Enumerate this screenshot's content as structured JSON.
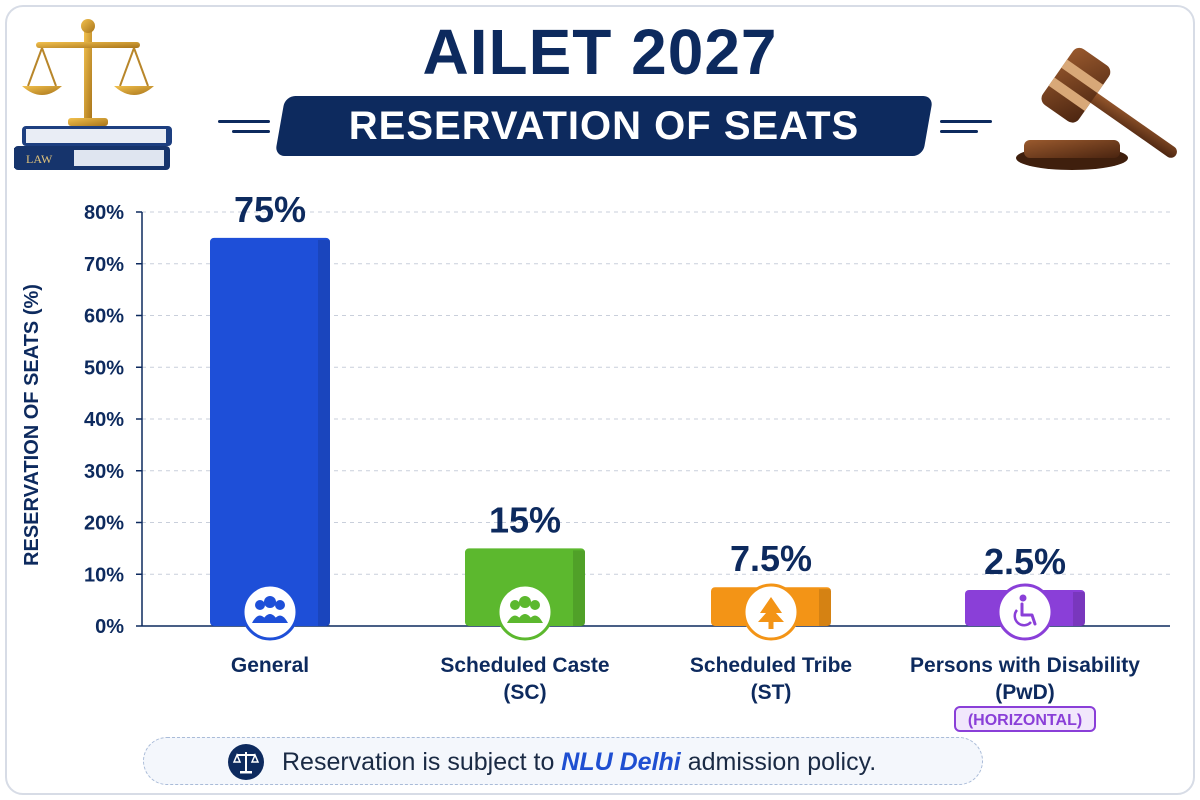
{
  "header": {
    "title": "AILET 2027",
    "subtitle": "RESERVATION OF SEATS",
    "book_label": "LAW"
  },
  "footer": {
    "text_before": "Reservation is subject to ",
    "text_emphasis": "NLU Delhi",
    "text_after": " admission policy.",
    "icon": "scales-icon"
  },
  "colors": {
    "navy": "#0d2a5e",
    "general": "#1e4fd8",
    "sc": "#5cb82e",
    "st": "#f39416",
    "pwd": "#8a3fd8"
  },
  "chart_data": {
    "type": "bar",
    "ylabel": "RESERVATION OF SEATS (%)",
    "ylim": [
      0,
      80
    ],
    "yticks": [
      "0%",
      "10%",
      "20%",
      "30%",
      "40%",
      "50%",
      "60%",
      "70%",
      "80%"
    ],
    "grid": true,
    "categories": [
      {
        "line1": "General",
        "line2": "",
        "tag": "",
        "icon": "users-icon",
        "color": "#1e4fd8"
      },
      {
        "line1": "Scheduled Caste",
        "line2": "(SC)",
        "tag": "",
        "icon": "users-icon",
        "color": "#5cb82e"
      },
      {
        "line1": "Scheduled Tribe",
        "line2": "(ST)",
        "tag": "",
        "icon": "tree-icon",
        "color": "#f39416"
      },
      {
        "line1": "Persons with Disability",
        "line2": "(PwD)",
        "tag": "(HORIZONTAL)",
        "icon": "wheelchair-icon",
        "color": "#8a3fd8"
      }
    ],
    "values": [
      75,
      15,
      7.5,
      2.5
    ],
    "value_labels": [
      "75%",
      "15%",
      "7.5%",
      "2.5%"
    ]
  }
}
